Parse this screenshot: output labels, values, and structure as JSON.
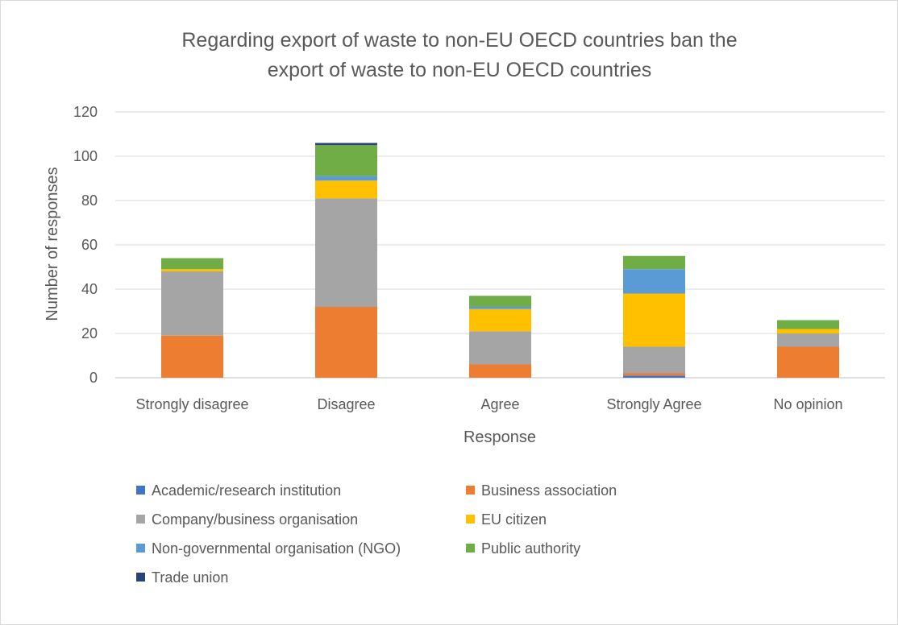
{
  "chart_data": {
    "type": "bar",
    "stacked": true,
    "title": "Regarding export of waste to non-EU OECD countries ban the export of waste to non-EU OECD countries",
    "title_lines": [
      "Regarding export of waste to non-EU OECD countries ban the",
      "export of waste to non-EU OECD countries"
    ],
    "xlabel": "Response",
    "ylabel": "Number of responses",
    "ylim": [
      0,
      120
    ],
    "yticks": [
      0,
      20,
      40,
      60,
      80,
      100,
      120
    ],
    "grid": true,
    "legend_position": "bottom",
    "categories": [
      "Strongly disagree",
      "Disagree",
      "Agree",
      "Strongly Agree",
      "No opinion"
    ],
    "series": [
      {
        "name": "Academic/research institution",
        "color": "#4472c4",
        "values": [
          0,
          0,
          0,
          1,
          0
        ]
      },
      {
        "name": "Business association",
        "color": "#ed7d31",
        "values": [
          19,
          32,
          6,
          1,
          14
        ]
      },
      {
        "name": "Company/business organisation",
        "color": "#a5a5a5",
        "values": [
          29,
          49,
          15,
          12,
          6
        ]
      },
      {
        "name": "EU citizen",
        "color": "#ffc000",
        "values": [
          1,
          8,
          10,
          24,
          2
        ]
      },
      {
        "name": "Non-governmental organisation (NGO)",
        "color": "#5b9bd5",
        "values": [
          0,
          2,
          1,
          11,
          0
        ]
      },
      {
        "name": "Public authority",
        "color": "#70ad47",
        "values": [
          5,
          14,
          5,
          6,
          4
        ]
      },
      {
        "name": "Trade union",
        "color": "#264478",
        "values": [
          0,
          1,
          0,
          0,
          0
        ]
      }
    ]
  }
}
